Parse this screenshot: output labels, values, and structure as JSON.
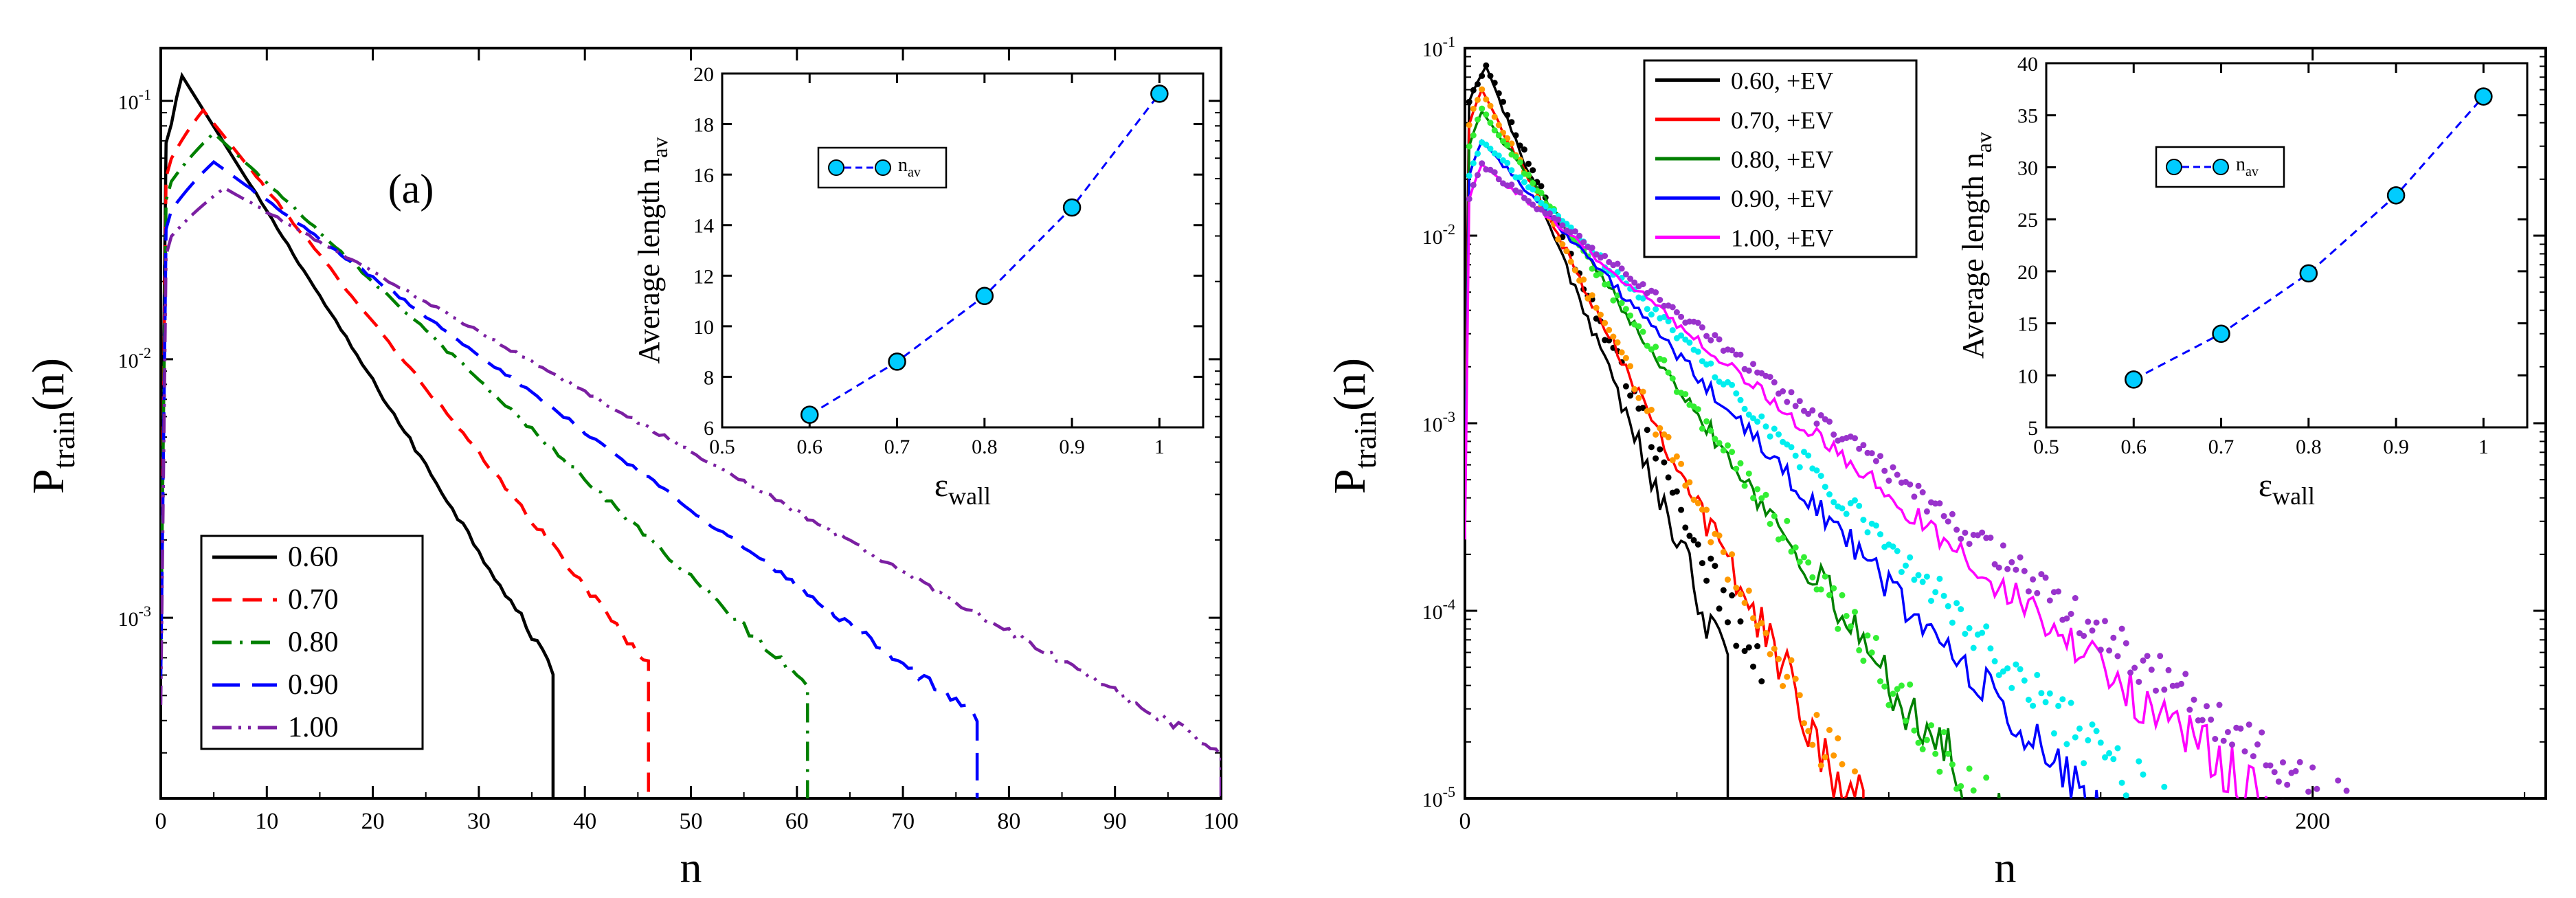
{
  "chart_data": [
    {
      "type": "line",
      "panel_label": "(a)",
      "xlabel": "n",
      "ylabel_main": "P",
      "ylabel_sub": "train",
      "ylabel_tail": "(n)",
      "xscale": "linear",
      "yscale": "log",
      "xlim": [
        0,
        100
      ],
      "ylim": [
        0.0002,
        0.16
      ],
      "xticks": [
        0,
        10,
        20,
        30,
        40,
        50,
        60,
        70,
        80,
        90,
        100
      ],
      "xtick_labels": [
        "0",
        "10",
        "20",
        "30",
        "40",
        "50",
        "60",
        "70",
        "80",
        "90",
        "100"
      ],
      "yticks": [
        {
          "value": 0.001,
          "base": "10",
          "exp": "-3"
        },
        {
          "value": 0.01,
          "base": "10",
          "exp": "-2"
        },
        {
          "value": 0.1,
          "base": "10",
          "exp": "-1"
        }
      ],
      "legend_position": "bottom-left",
      "series": [
        {
          "name": "0.60",
          "color": "#000000",
          "dash": "solid",
          "peak_n": 2,
          "peak": 0.125,
          "tail_slope": 0.151,
          "end_n": 37
        },
        {
          "name": "0.70",
          "color": "#ff0000",
          "dash": "dashed",
          "peak_n": 4,
          "peak": 0.092,
          "tail_slope": 0.1178,
          "end_n": 46
        },
        {
          "name": "0.80",
          "color": "#008000",
          "dash": "dashdot",
          "peak_n": 5,
          "peak": 0.075,
          "tail_slope": 0.088,
          "end_n": 61
        },
        {
          "name": "0.90",
          "color": "#0000ff",
          "dash": "longdash",
          "peak_n": 5,
          "peak": 0.058,
          "tail_slope": 0.0687,
          "end_n": 77
        },
        {
          "name": "1.00",
          "color": "#7b1fa2",
          "dash": "dashdotdot",
          "peak_n": 6,
          "peak": 0.046,
          "tail_slope": 0.0534,
          "end_n": 100
        }
      ],
      "inset": {
        "type": "line",
        "xlabel_main": "ε",
        "xlabel_sub": "wall",
        "ylabel_main": "Average length n",
        "ylabel_sub": "av",
        "legend_label_main": "n",
        "legend_label_sub": "av",
        "xlim": [
          0.5,
          1.05
        ],
        "ylim": [
          6,
          20
        ],
        "xticks": [
          0.5,
          0.6,
          0.7,
          0.8,
          0.9,
          1
        ],
        "xtick_labels": [
          "0.5",
          "0.6",
          "0.7",
          "0.8",
          "0.9",
          "1"
        ],
        "yticks": [
          6,
          8,
          10,
          12,
          14,
          16,
          18,
          20
        ],
        "ytick_labels": [
          "6",
          "8",
          "10",
          "12",
          "14",
          "16",
          "18",
          "20"
        ],
        "x": [
          0.6,
          0.7,
          0.8,
          0.9,
          1.0
        ],
        "y": [
          6.5,
          8.6,
          11.2,
          14.7,
          19.2
        ],
        "color": "#0000ff",
        "marker_fill": "#00ccff"
      }
    },
    {
      "type": "line",
      "panel_label": "(b)",
      "xlabel": "n",
      "ylabel_main": "P",
      "ylabel_sub": "train",
      "ylabel_tail": "(n)",
      "xscale": "linear",
      "yscale": "log",
      "xlim": [
        0,
        255
      ],
      "ylim": [
        1e-05,
        0.1
      ],
      "xticks": [
        0,
        200
      ],
      "xtick_labels": [
        "0",
        "200"
      ],
      "yticks": [
        {
          "value": 1e-05,
          "base": "10",
          "exp": "-5"
        },
        {
          "value": 0.0001,
          "base": "10",
          "exp": "-4"
        },
        {
          "value": 0.001,
          "base": "10",
          "exp": "-3"
        },
        {
          "value": 0.01,
          "base": "10",
          "exp": "-2"
        },
        {
          "value": 0.1,
          "base": "10",
          "exp": "-1"
        }
      ],
      "legend_position": "top-left",
      "series": [
        {
          "name": "0.60, +EV",
          "color": "#000000",
          "dot_color": "#000000",
          "peak_n": 5,
          "peak": 0.08,
          "tail_slope": 0.1295,
          "end_n": 62,
          "dot_end_n": 70
        },
        {
          "name": "0.70, +EV",
          "color": "#ff0000",
          "dot_color": "#ff9900",
          "peak_n": 4,
          "peak": 0.06,
          "tail_slope": 0.0999,
          "end_n": 94,
          "dot_end_n": 93
        },
        {
          "name": "0.80, +EV",
          "color": "#008000",
          "dot_color": "#33ee33",
          "peak_n": 4,
          "peak": 0.046,
          "tail_slope": 0.0726,
          "end_n": 136,
          "dot_end_n": 136
        },
        {
          "name": "0.90, +EV",
          "color": "#0000ff",
          "dot_color": "#00eeee",
          "peak_n": 4,
          "peak": 0.032,
          "tail_slope": 0.0569,
          "end_n": 175,
          "dot_end_n": 195
        },
        {
          "name": "1.00, +EV",
          "color": "#ff00ff",
          "dot_color": "#9933cc",
          "peak_n": 4,
          "peak": 0.024,
          "tail_slope": 0.0423,
          "end_n": 246,
          "dot_end_n": 255
        }
      ],
      "inset": {
        "type": "line",
        "xlabel_main": "ε",
        "xlabel_sub": "wall",
        "ylabel_main": "Average length n",
        "ylabel_sub": "av",
        "legend_label_main": "n",
        "legend_label_sub": "av",
        "xlim": [
          0.5,
          1.05
        ],
        "ylim": [
          5,
          40
        ],
        "xticks": [
          0.5,
          0.6,
          0.7,
          0.8,
          0.9,
          1
        ],
        "xtick_labels": [
          "0.5",
          "0.6",
          "0.7",
          "0.8",
          "0.9",
          "1"
        ],
        "yticks": [
          5,
          10,
          15,
          20,
          25,
          30,
          35,
          40
        ],
        "ytick_labels": [
          "5",
          "10",
          "15",
          "20",
          "25",
          "30",
          "35",
          "40"
        ],
        "x": [
          0.6,
          0.7,
          0.8,
          0.9,
          1.0
        ],
        "y": [
          9.6,
          14.0,
          19.8,
          27.3,
          36.8
        ],
        "color": "#0000ff",
        "marker_fill": "#00ccff"
      }
    }
  ]
}
